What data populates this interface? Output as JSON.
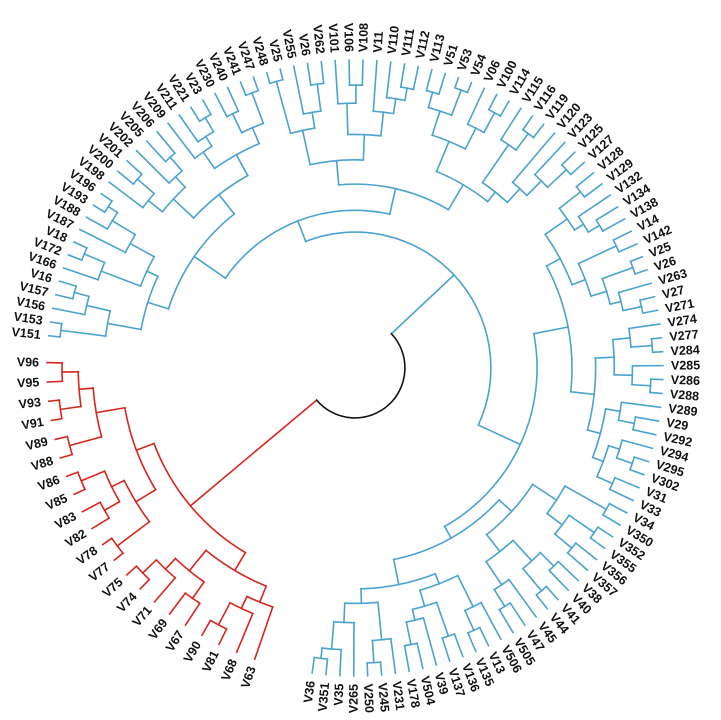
{
  "tree": {
    "colors": {
      "blue_clade": "#4aa3cf",
      "red_clade": "#d7261e",
      "root": "#111111",
      "label": "#111111"
    },
    "clades": [
      {
        "name": "blue",
        "color_key": "blue_clade",
        "leaves": [
          "V151",
          "V153",
          "V156",
          "V157",
          "V16",
          "V166",
          "V172",
          "V18",
          "V187",
          "V188",
          "V193",
          "V196",
          "V198",
          "V200",
          "V201",
          "V202",
          "V205",
          "V206",
          "V209",
          "V211",
          "V221",
          "V23",
          "V230",
          "V240",
          "V241",
          "V247",
          "V248",
          "V25",
          "V255",
          "V26",
          "V262",
          "V101",
          "V106",
          "V108",
          "V11",
          "V110",
          "V111",
          "V112",
          "V113",
          "V51",
          "V53",
          "V54",
          "V06",
          "V100",
          "V114",
          "V115",
          "V116",
          "V119",
          "V120",
          "V123",
          "V125",
          "V127",
          "V128",
          "V129",
          "V132",
          "V134",
          "V138",
          "V14",
          "V142",
          "V25",
          "V26",
          "V263",
          "V27",
          "V271",
          "V274",
          "V277",
          "V284",
          "V285",
          "V286",
          "V288",
          "V289",
          "V29",
          "V292",
          "V294",
          "V295",
          "V302",
          "V31",
          "V33",
          "V34",
          "V350",
          "V352",
          "V355",
          "V356",
          "V357",
          "V38",
          "V40",
          "V41",
          "V44",
          "V45",
          "V47",
          "V505",
          "V506",
          "V13",
          "V135",
          "V136",
          "V137",
          "V39",
          "V504",
          "V178",
          "V231",
          "V245",
          "V250",
          "V265",
          "V35",
          "V351",
          "V36"
        ]
      },
      {
        "name": "red",
        "color_key": "red_clade",
        "leaves": [
          "V63",
          "V68",
          "V81",
          "V90",
          "V67",
          "V69",
          "V71",
          "V74",
          "V75",
          "V77",
          "V78",
          "V82",
          "V83",
          "V85",
          "V86",
          "V88",
          "V89",
          "V91",
          "V93",
          "V95",
          "V96"
        ]
      }
    ]
  }
}
